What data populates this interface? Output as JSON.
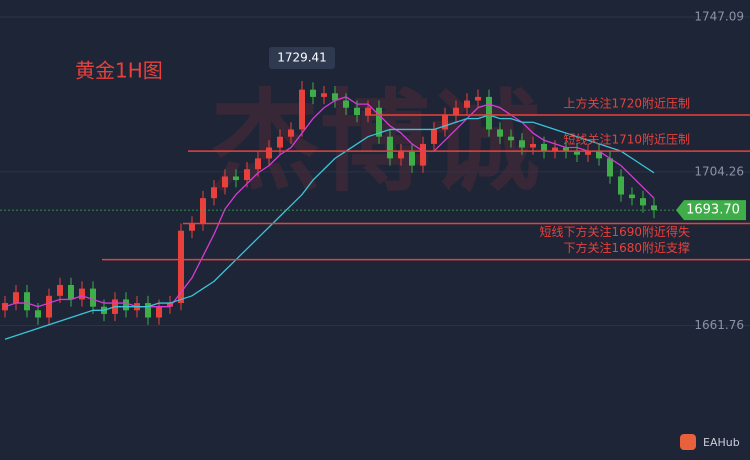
{
  "chart_data": {
    "type": "candlestick",
    "title": "黄金1H图",
    "watermark": "杰博诚",
    "brand": "EAHub",
    "open": [
      1666,
      1668,
      1671,
      1666,
      1664,
      1670,
      1673,
      1669,
      1672,
      1667,
      1665,
      1669,
      1666,
      1668,
      1664,
      1667,
      1668,
      1688,
      1690,
      1697,
      1700,
      1703,
      1702,
      1705,
      1708,
      1711,
      1714,
      1716,
      1727,
      1725,
      1726,
      1724,
      1722,
      1720,
      1722,
      1714,
      1708,
      1710,
      1706,
      1712,
      1716,
      1720,
      1722,
      1724,
      1725,
      1716,
      1714,
      1713,
      1711,
      1712,
      1710,
      1711,
      1710,
      1709,
      1710,
      1708,
      1703,
      1698,
      1697,
      1695
    ],
    "high": [
      1670,
      1673,
      1673,
      1668,
      1672,
      1675,
      1675,
      1674,
      1674,
      1669,
      1671,
      1671,
      1670,
      1670,
      1669,
      1670,
      1690,
      1692,
      1699,
      1702,
      1705,
      1705,
      1707,
      1710,
      1713,
      1716,
      1718,
      1729.41,
      1729,
      1728,
      1728,
      1726,
      1724,
      1724,
      1724,
      1716,
      1712,
      1712,
      1714,
      1718,
      1722,
      1724,
      1726,
      1727,
      1727,
      1718,
      1716,
      1715,
      1714,
      1714,
      1713,
      1713,
      1712,
      1712,
      1712,
      1710,
      1705,
      1700,
      1699,
      1697
    ],
    "low": [
      1664,
      1666,
      1664,
      1662,
      1662,
      1668,
      1667,
      1667,
      1665,
      1663,
      1663,
      1664,
      1664,
      1662,
      1662,
      1665,
      1666,
      1686,
      1688,
      1695,
      1698,
      1700,
      1700,
      1703,
      1706,
      1709,
      1712,
      1714,
      1723,
      1723,
      1722,
      1720,
      1718,
      1718,
      1712,
      1706,
      1706,
      1704,
      1704,
      1710,
      1714,
      1718,
      1720,
      1722,
      1714,
      1712,
      1711,
      1709,
      1709,
      1708,
      1708,
      1708,
      1707,
      1707,
      1706,
      1701,
      1696,
      1695,
      1693,
      1691.5
    ],
    "close": [
      1668,
      1671,
      1666,
      1664,
      1670,
      1673,
      1669,
      1672,
      1667,
      1665,
      1669,
      1666,
      1668,
      1664,
      1667,
      1668,
      1688,
      1690,
      1697,
      1700,
      1703,
      1702,
      1705,
      1708,
      1711,
      1714,
      1716,
      1727,
      1725,
      1726,
      1724,
      1722,
      1720,
      1722,
      1714,
      1708,
      1710,
      1706,
      1712,
      1716,
      1720,
      1722,
      1724,
      1725,
      1716,
      1714,
      1713,
      1711,
      1712,
      1710,
      1711,
      1710,
      1709,
      1710,
      1708,
      1703,
      1698,
      1697,
      1695,
      1693.7
    ],
    "up_color": "#e8413c",
    "down_color": "#3fae49",
    "ma_lines": [
      {
        "color": "#d63bd6",
        "values": [
          1667,
          1668,
          1668,
          1667,
          1668,
          1669,
          1669,
          1670,
          1669,
          1668,
          1668,
          1668,
          1667,
          1667,
          1667,
          1667,
          1671,
          1675,
          1681,
          1687,
          1694,
          1698,
          1701,
          1704,
          1706,
          1709,
          1711,
          1715,
          1719,
          1722,
          1724,
          1725,
          1723,
          1723,
          1720,
          1717,
          1715,
          1712,
          1710,
          1710,
          1713,
          1716,
          1719,
          1722,
          1723,
          1722,
          1720,
          1718,
          1715,
          1713,
          1712,
          1711,
          1711,
          1710,
          1710,
          1708,
          1706,
          1703,
          1700,
          1697
        ]
      },
      {
        "color": "#3cc3d8",
        "values": [
          1658,
          1659,
          1660,
          1661,
          1662,
          1663,
          1664,
          1665,
          1666,
          1666,
          1667,
          1667,
          1667,
          1667,
          1668,
          1668,
          1669,
          1670,
          1672,
          1674,
          1677,
          1680,
          1683,
          1686,
          1689,
          1692,
          1695,
          1698,
          1702,
          1705,
          1708,
          1710,
          1712,
          1714,
          1715,
          1716,
          1716,
          1716,
          1716,
          1716,
          1717,
          1718,
          1719,
          1719,
          1720,
          1719,
          1719,
          1718,
          1718,
          1717,
          1716,
          1715,
          1714,
          1713,
          1712,
          1711,
          1710,
          1708,
          1706,
          1704
        ]
      }
    ],
    "ylim": [
      1624.61,
      1751.79
    ],
    "yticks": [
      1661.76,
      1704.26,
      1747.09
    ],
    "grid": true,
    "levels": [
      {
        "value": 1720,
        "label": "上方关注1720附近压制"
      },
      {
        "value": 1710,
        "label": "短线关注1710附近压制"
      },
      {
        "value": 1690,
        "label": "短线下方关注1690附近得失"
      },
      {
        "value": 1680,
        "label": "下方关注1680附近支撑"
      }
    ],
    "last_price": {
      "value": 1693.7,
      "label": "1693.70"
    }
  }
}
